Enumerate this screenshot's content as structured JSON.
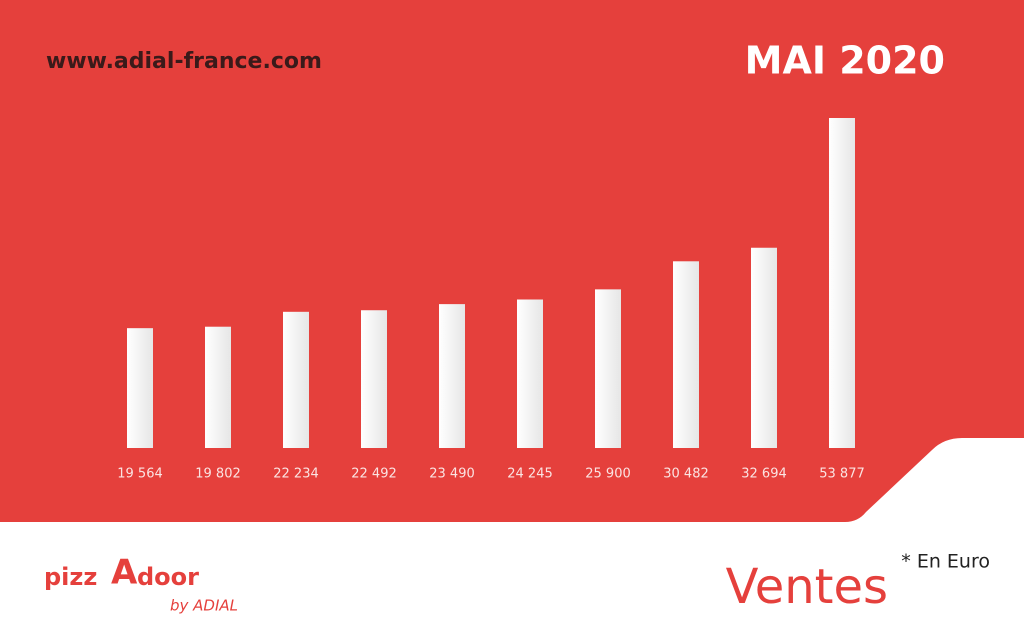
{
  "chart_data": {
    "type": "bar",
    "title": "MAI 2020",
    "website": "www.adial-france.com",
    "label": "Ventes",
    "note": "* En Euro",
    "values": [
      19564,
      19802,
      22234,
      22492,
      23490,
      24245,
      25900,
      30482,
      32694,
      53877
    ],
    "value_labels": [
      "19 564",
      "19 802",
      "22 234",
      "22 492",
      "23 490",
      "24 245",
      "25 900",
      "30 482",
      "32 694",
      "53 877"
    ],
    "color": "#ffffff"
  },
  "logo": {
    "brand_left": "pizz",
    "brand_a": "A",
    "brand_right": "door",
    "tagline": "by ADIAL"
  }
}
